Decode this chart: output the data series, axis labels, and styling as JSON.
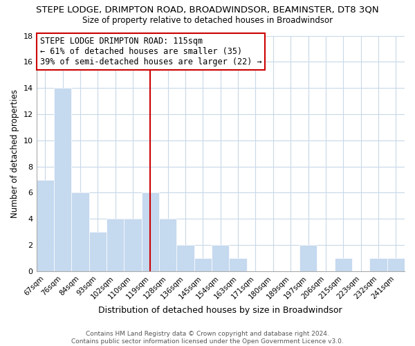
{
  "title": "STEPE LODGE, DRIMPTON ROAD, BROADWINDSOR, BEAMINSTER, DT8 3QN",
  "subtitle": "Size of property relative to detached houses in Broadwindsor",
  "xlabel": "Distribution of detached houses by size in Broadwindsor",
  "ylabel": "Number of detached properties",
  "bin_labels": [
    "67sqm",
    "76sqm",
    "84sqm",
    "93sqm",
    "102sqm",
    "110sqm",
    "119sqm",
    "128sqm",
    "136sqm",
    "145sqm",
    "154sqm",
    "163sqm",
    "171sqm",
    "180sqm",
    "189sqm",
    "197sqm",
    "206sqm",
    "215sqm",
    "223sqm",
    "232sqm",
    "241sqm"
  ],
  "bar_values": [
    7,
    14,
    6,
    3,
    4,
    4,
    6,
    4,
    2,
    1,
    2,
    1,
    0,
    0,
    0,
    2,
    0,
    1,
    0,
    1,
    1
  ],
  "bar_color": "#c5d9ef",
  "ylim": [
    0,
    18
  ],
  "yticks": [
    0,
    2,
    4,
    6,
    8,
    10,
    12,
    14,
    16,
    18
  ],
  "vline_color": "#cc0000",
  "annotation_text": "STEPE LODGE DRIMPTON ROAD: 115sqm\n← 61% of detached houses are smaller (35)\n39% of semi-detached houses are larger (22) →",
  "annotation_box_color": "#ffffff",
  "annotation_box_edge": "#cc0000",
  "footer": "Contains HM Land Registry data © Crown copyright and database right 2024.\nContains public sector information licensed under the Open Government Licence v3.0.",
  "background_color": "#ffffff",
  "grid_color": "#c8d8e8"
}
